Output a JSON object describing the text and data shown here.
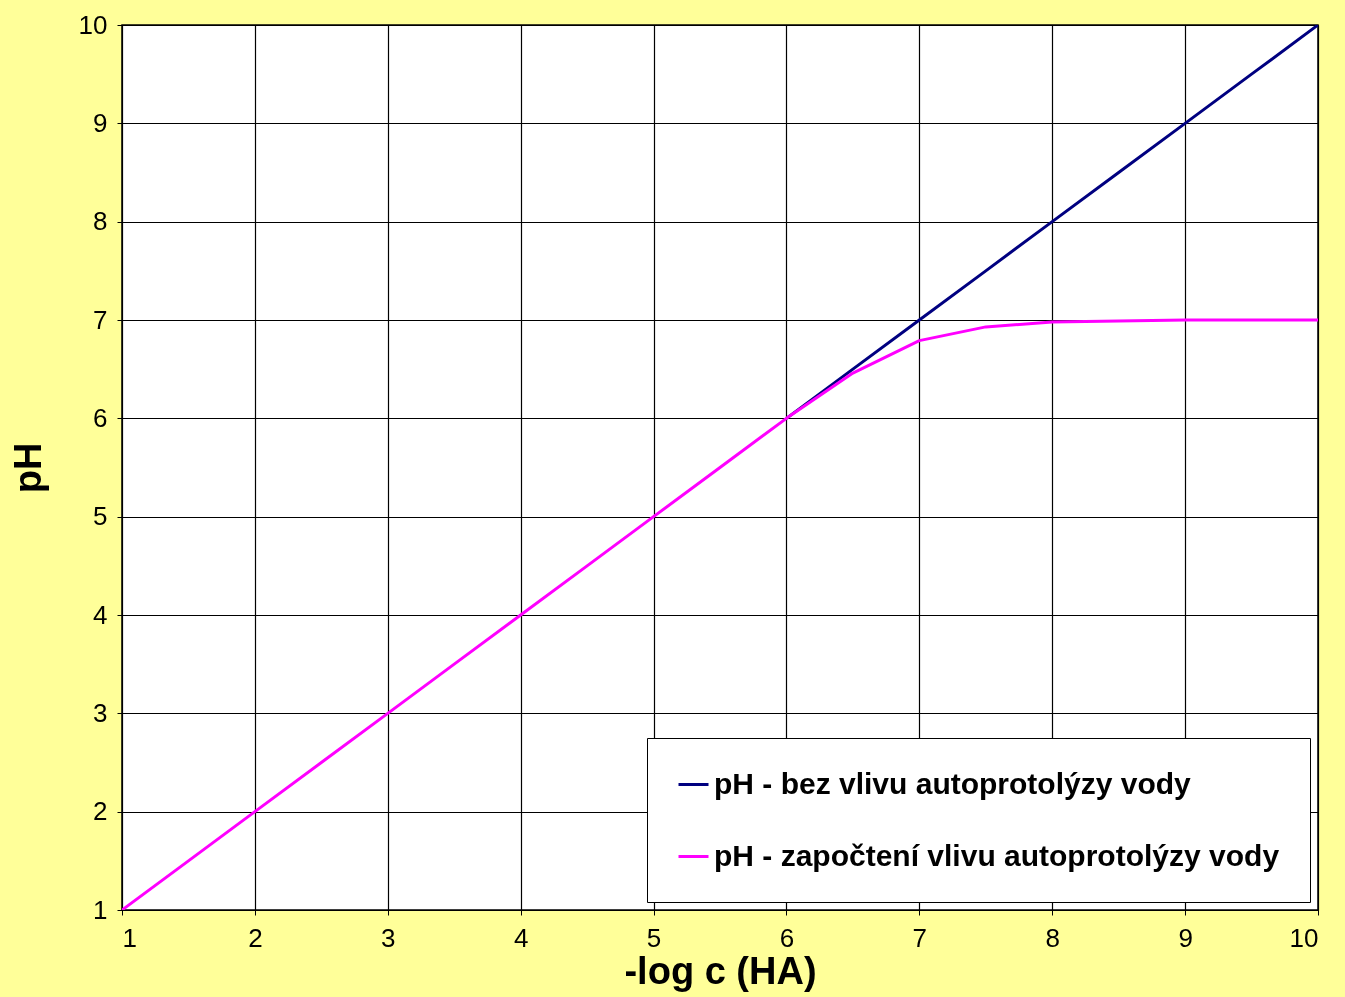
{
  "chart_data": {
    "type": "line",
    "xlabel": "-log c (HA)",
    "ylabel": "pH",
    "xlim": [
      1,
      10
    ],
    "ylim": [
      1,
      10
    ],
    "xticks": [
      1,
      2,
      3,
      4,
      5,
      6,
      7,
      8,
      9,
      10
    ],
    "yticks": [
      1,
      2,
      3,
      4,
      5,
      6,
      7,
      8,
      9,
      10
    ],
    "grid": true,
    "legend": "bottom right",
    "marker": "none",
    "line_style": "solid",
    "x": [
      1,
      1.5,
      2,
      2.5,
      3,
      3.5,
      4,
      4.5,
      5,
      5.5,
      6,
      6.5,
      7,
      7.5,
      8,
      8.5,
      9,
      9.5,
      10
    ],
    "series": [
      {
        "name": "pH - bez vlivu autoprotolýzy vody",
        "color": "#000080",
        "values": [
          null,
          null,
          null,
          null,
          null,
          null,
          null,
          null,
          null,
          null,
          6,
          6.5,
          7,
          7.5,
          8,
          8.5,
          9,
          9.5,
          10
        ]
      },
      {
        "name": "pH - započtení vlivu autoprotolýzy vody",
        "color": "#ff00ff",
        "values": [
          1,
          1.5,
          2,
          2.5,
          3,
          3.5,
          4,
          4.5,
          5,
          5.5,
          6,
          6.46,
          6.79,
          6.93,
          6.98,
          6.99,
          7,
          7,
          7
        ]
      }
    ]
  }
}
